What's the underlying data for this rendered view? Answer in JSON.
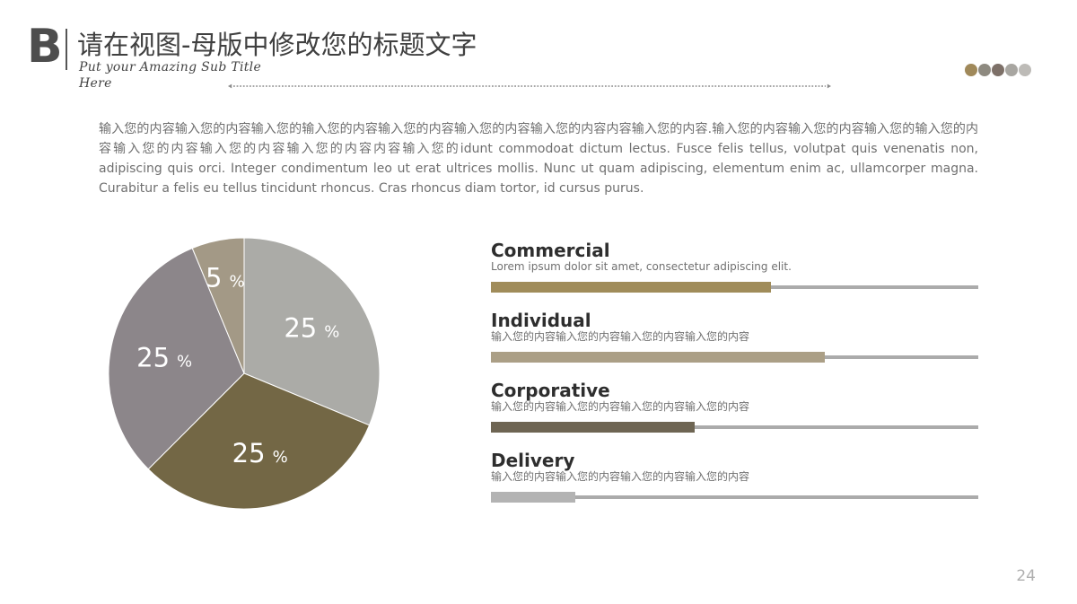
{
  "header": {
    "logo_letter": "B",
    "title": "请在视图-母版中修改您的标题文字",
    "subtitle": "Put your Amazing Sub Title Here"
  },
  "body_text": "输入您的内容输入您的内容输入您的输入您的内容输入您的内容输入您的内容输入您的内容内容输入您的内容.输入您的内容输入您的内容输入您的输入您的内容输入您的内容输入您的内容输入您的内容内容输入您的idunt commodoat dictum lectus. Fusce felis tellus, volutpat quis venenatis non, adipiscing quis orci. Integer condimentum leo ut erat ultrices mollis. Nunc ut quam adipiscing, elementum enim ac, ullamcorper magna. Curabitur a felis eu tellus tincidunt rhoncus. Cras rhoncus diam tortor, id cursus purus.",
  "decor_dot_colors": [
    "#a0895a",
    "#8e8a80",
    "#7d7068",
    "#a8a6a1",
    "#bdbbb7"
  ],
  "colors": {
    "rule": "#8a8a8a",
    "track": "#ababab"
  },
  "chart_data": [
    {
      "type": "pie",
      "slices": [
        {
          "label": "25",
          "value": 25,
          "color": "#ababa7"
        },
        {
          "label": "25",
          "value": 25,
          "color": "#736745"
        },
        {
          "label": "25",
          "value": 25,
          "color": "#8c868a"
        },
        {
          "label": "5",
          "value": 5,
          "color": "#a39986"
        }
      ],
      "unit": "%"
    },
    {
      "type": "bar",
      "series": [
        {
          "name": "Commercial",
          "desc": "Lorem ipsum dolor sit amet, consectetur adipiscing elit.",
          "value": 0.575,
          "color": "#a08c5a"
        },
        {
          "name": "Individual",
          "desc": "输入您的内容输入您的内容输入您的内容输入您的内容",
          "value": 0.685,
          "color": "#ab9f86"
        },
        {
          "name": "Corporative",
          "desc": "输入您的内容输入您的内容输入您的内容输入您的内容",
          "value": 0.418,
          "color": "#6e6553"
        },
        {
          "name": "Delivery",
          "desc": "输入您的内容输入您的内容输入您的内容输入您的内容",
          "value": 0.173,
          "color": "#b3b3b3"
        }
      ]
    }
  ],
  "page_number": "24"
}
